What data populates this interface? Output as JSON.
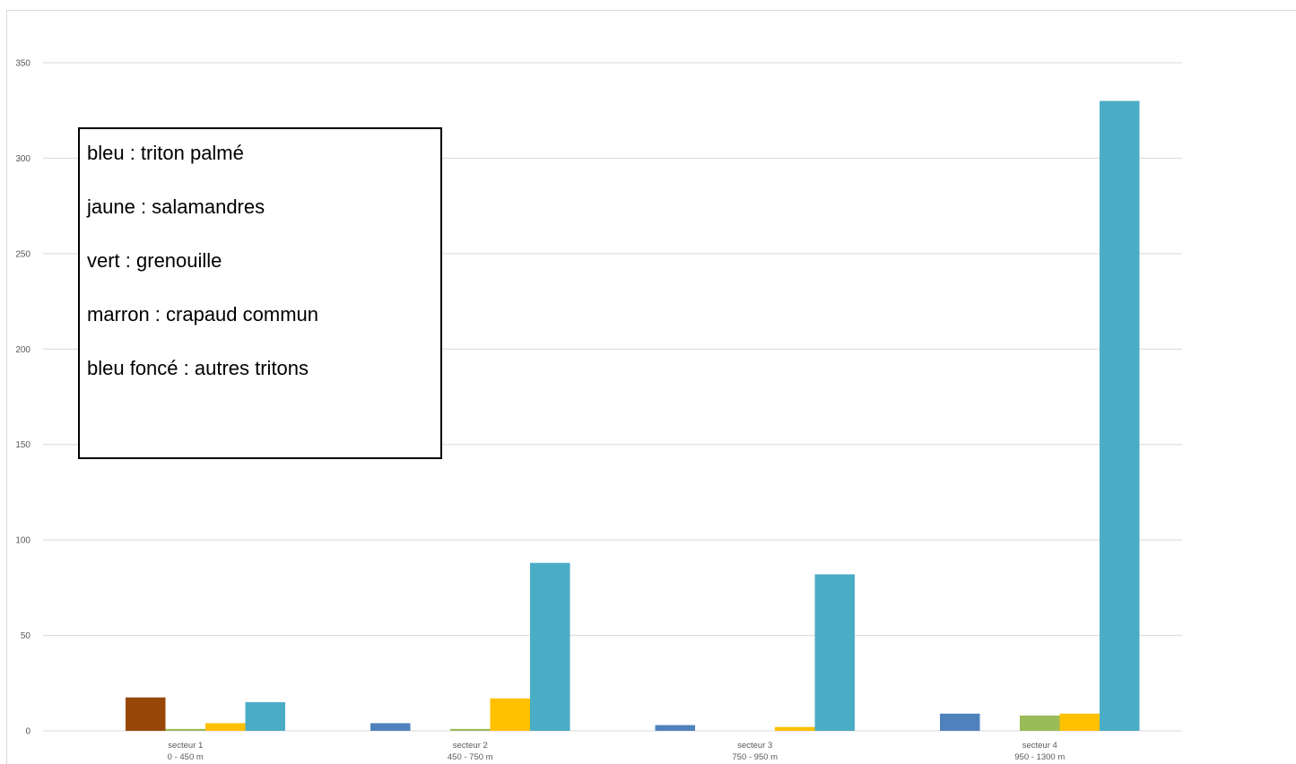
{
  "chart_data": {
    "type": "bar",
    "title": "",
    "xlabel": "",
    "ylabel": "",
    "ylim": [
      0,
      350
    ],
    "yticks": [
      0,
      50,
      100,
      150,
      200,
      250,
      300,
      350
    ],
    "grid": true,
    "categories": [
      {
        "line1": "secteur 1",
        "line2": "0 - 450 m"
      },
      {
        "line1": "secteur 2",
        "line2": "450 - 750 m"
      },
      {
        "line1": "secteur 3",
        "line2": "750 - 950 m"
      },
      {
        "line1": "secteur 4",
        "line2": "950 - 1300 m"
      }
    ],
    "series": [
      {
        "color": "#4f81bd",
        "values": [
          0,
          4,
          3,
          9
        ]
      },
      {
        "color": "#974706",
        "values": [
          17.5,
          0,
          0,
          0
        ]
      },
      {
        "color": "#9bbb59",
        "values": [
          1,
          1,
          0,
          8
        ]
      },
      {
        "color": "#ffc000",
        "values": [
          4,
          17,
          2,
          9
        ]
      },
      {
        "color": "#4bacc6",
        "values": [
          15,
          88,
          82,
          330
        ]
      }
    ],
    "annotation_lines": [
      "bleu : triton palmé",
      "jaune : salamandres",
      "vert : grenouille",
      "marron : crapaud commun",
      "bleu foncé : autres tritons"
    ]
  }
}
